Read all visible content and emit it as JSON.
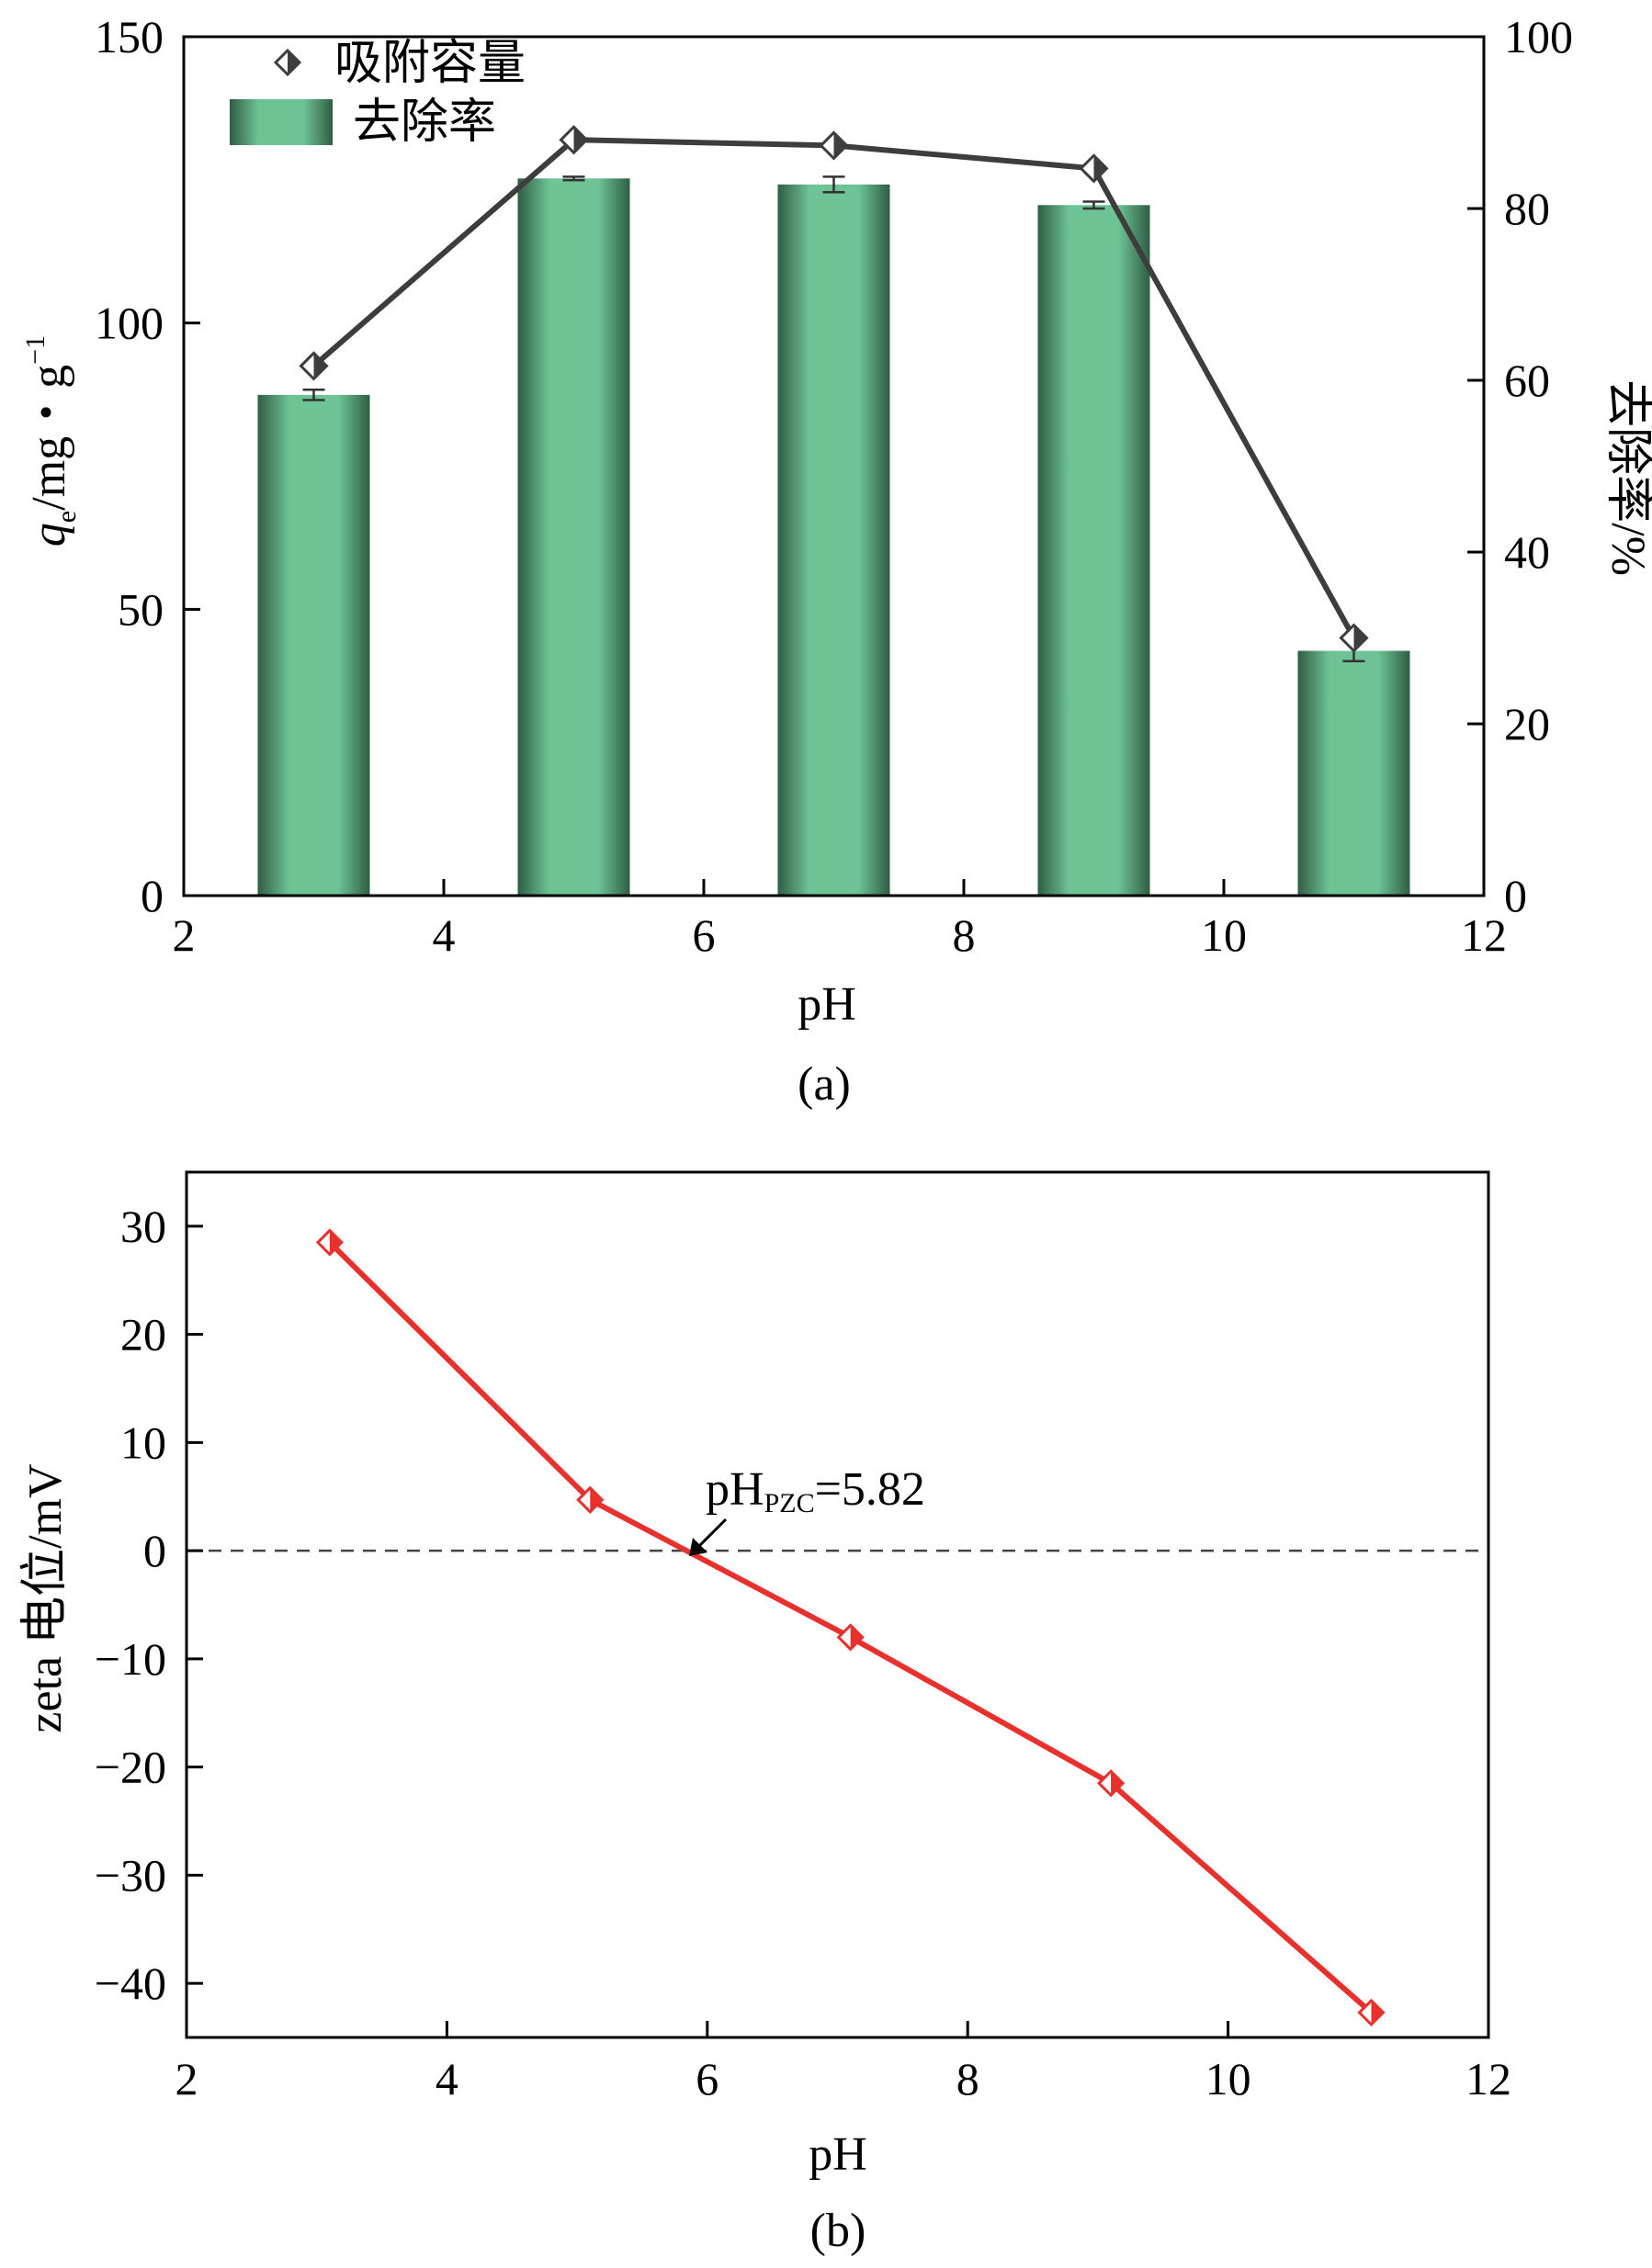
{
  "figure": {
    "caption_a": "(a)",
    "caption_b": "(b)"
  },
  "chart_data": [
    {
      "id": "a",
      "type": "bar+line",
      "title": "",
      "xlabel": "pH",
      "ylabel_left": {
        "italic": "q",
        "sub": "e",
        "rest": "/mg・g",
        "sup": "−1"
      },
      "ylabel_right": "去除率/%",
      "xlim": [
        2,
        12
      ],
      "ylim_left": [
        0,
        150
      ],
      "ylim_right": [
        0,
        100
      ],
      "x_ticks": [
        "2",
        "4",
        "6",
        "8",
        "10",
        "12"
      ],
      "y_left_ticks": [
        "0",
        "50",
        "100",
        "150"
      ],
      "y_right_ticks": [
        "0",
        "20",
        "40",
        "60",
        "80",
        "100"
      ],
      "legend": {
        "placement": "top-left",
        "line_label": "吸附容量",
        "bar_label": "去除率"
      },
      "bars": {
        "name": "去除率",
        "axis": "right",
        "x": [
          3,
          5,
          7,
          9,
          11
        ],
        "values": [
          58.3,
          83.5,
          82.8,
          80.4,
          28.5
        ],
        "errors": [
          0.6,
          0.2,
          0.9,
          0.4,
          1.2
        ]
      },
      "line": {
        "name": "吸附容量",
        "axis": "left",
        "x": [
          3,
          5,
          7,
          9,
          11
        ],
        "values": [
          92.5,
          132.0,
          131.0,
          127.0,
          45.0
        ]
      },
      "colors": {
        "bar_light": "#6dc296",
        "bar_dark": "#2f5e43",
        "line": "#3d3d3d"
      }
    },
    {
      "id": "b",
      "type": "line",
      "title": "",
      "xlabel": "pH",
      "ylabel": "zeta 电位/mV",
      "xlim": [
        2,
        12
      ],
      "ylim": [
        -45,
        35
      ],
      "x_ticks": [
        "2",
        "4",
        "6",
        "8",
        "10",
        "12"
      ],
      "y_ticks": [
        "30",
        "20",
        "10",
        "0",
        "−10",
        "−20",
        "−30",
        "−40"
      ],
      "series": [
        {
          "name": "zeta",
          "x": [
            3.1,
            5.1,
            7.1,
            9.1,
            11.1
          ],
          "values": [
            28.5,
            4.7,
            -8.0,
            -21.5,
            -42.7
          ]
        }
      ],
      "reference_line": {
        "y": 0,
        "style": "dashed"
      },
      "annotation": {
        "main": "pH",
        "sub": "PZC",
        "rest": "=5.82",
        "x": 5.82,
        "y": 0
      },
      "colors": {
        "line": "#e8302d",
        "marker_fill": "#ffffff",
        "reference": "#444444"
      }
    }
  ]
}
